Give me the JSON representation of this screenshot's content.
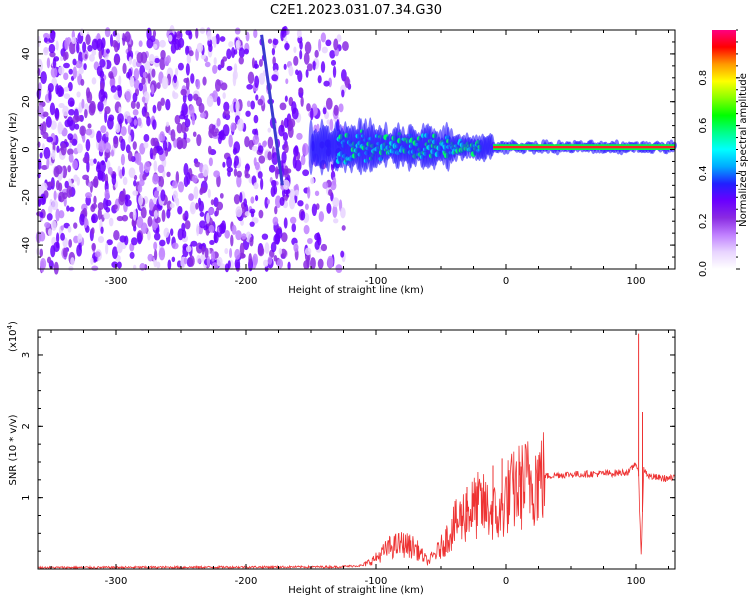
{
  "title": "C2E1.2023.031.07.34.G30",
  "chart_data": [
    {
      "type": "heatmap",
      "xlabel": "Height of straight line (km)",
      "ylabel": "Frequency (Hz)",
      "xlim": [
        -360,
        130
      ],
      "ylim": [
        -50,
        50
      ],
      "x_ticks": [
        -300,
        -200,
        -100,
        0,
        100
      ],
      "y_ticks": [
        -40,
        -20,
        0,
        20,
        40
      ],
      "colorbar": {
        "label": "Normalized spectral amplitude",
        "range": [
          0,
          1
        ],
        "ticks": [
          "0.0",
          "0.2",
          "0.4",
          "0.6",
          "0.8"
        ],
        "colors": [
          "#ffffff",
          "#e8d4ff",
          "#c080ff",
          "#8a2be2",
          "#6a00ff",
          "#2020ff",
          "#00aaff",
          "#00ffff",
          "#00ff88",
          "#00ff00",
          "#88ff00",
          "#ffff00",
          "#ff9900",
          "#ff0000",
          "#ff0080"
        ]
      },
      "features": {
        "noise_region_x": [
          -360,
          -120
        ],
        "signal_band_center_hz": 1,
        "signal_from_km": -150,
        "signal_to_km": 130,
        "oblique_line": [
          [
            -188,
            48
          ],
          [
            -172,
            -15
          ]
        ]
      }
    },
    {
      "type": "line",
      "xlabel": "Height of straight line (km)",
      "ylabel": "SNR (10 * v/v)",
      "y_multiplier": "(x10^4)",
      "xlim": [
        -360,
        130
      ],
      "ylim": [
        0,
        3.35
      ],
      "x_ticks": [
        -300,
        -200,
        -100,
        0,
        100
      ],
      "y_ticks": [
        1,
        2,
        3
      ],
      "color": "#ee3333",
      "envelope": {
        "x": [
          -360,
          -130,
          -110,
          -100,
          -90,
          -80,
          -70,
          -60,
          -50,
          -40,
          -30,
          -20,
          -10,
          -5,
          0,
          10,
          20,
          30,
          40,
          60,
          80,
          95,
          100,
          102,
          104,
          106,
          110,
          120,
          130
        ],
        "y": [
          0.02,
          0.03,
          0.05,
          0.15,
          0.3,
          0.35,
          0.3,
          0.1,
          0.3,
          0.6,
          0.8,
          0.9,
          0.8,
          0.7,
          1.0,
          1.15,
          1.25,
          1.3,
          1.32,
          1.33,
          1.34,
          1.36,
          1.5,
          1.3,
          0.2,
          1.4,
          1.3,
          1.27,
          1.27
        ]
      },
      "spikes": [
        {
          "x": 102,
          "y": 3.3
        },
        {
          "x": 105,
          "y": 2.2
        },
        {
          "x": -3,
          "y": 1.55
        },
        {
          "x": -10,
          "y": 1.45
        },
        {
          "x": -30,
          "y": 1.15
        },
        {
          "x": 10,
          "y": 1.5
        }
      ]
    }
  ]
}
